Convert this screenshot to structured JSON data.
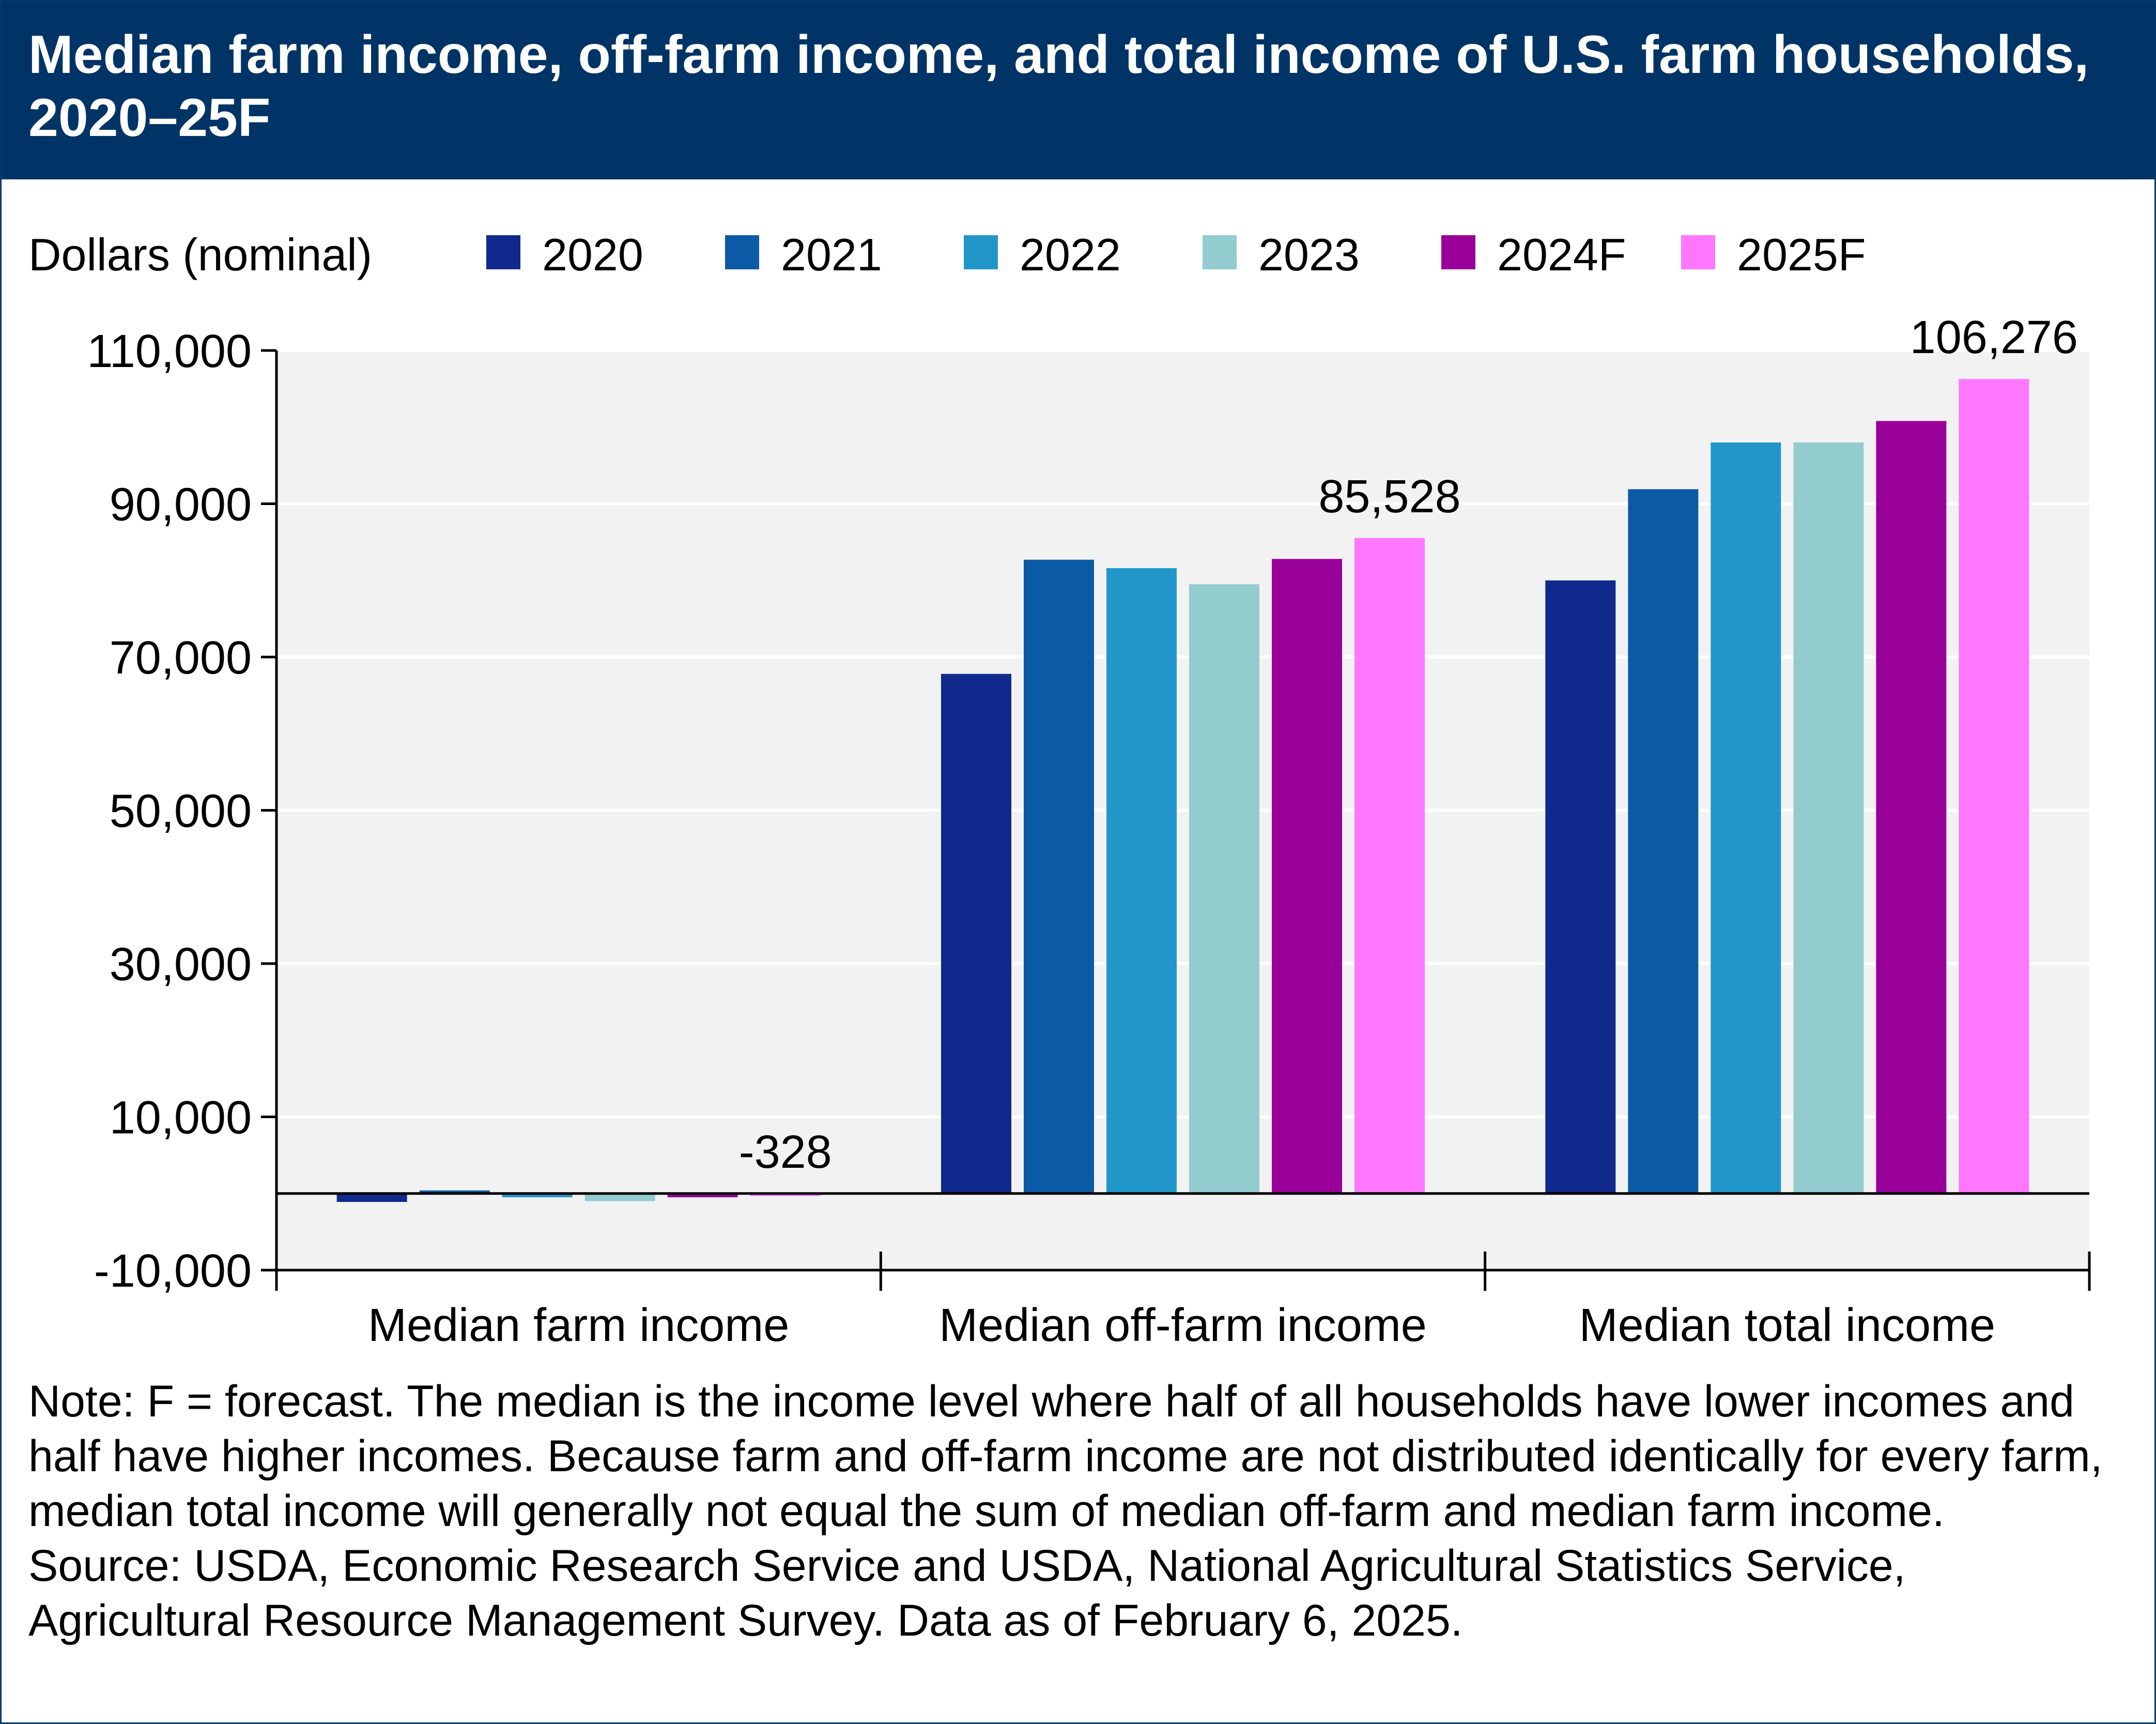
{
  "header": {
    "title": "Median farm income, off-farm income, and total income of U.S. farm households, 2020–25F"
  },
  "chart_data": {
    "type": "bar",
    "title": "Median farm income, off-farm income, and total income of U.S. farm households, 2020–25F",
    "ylabel": "Dollars (nominal)",
    "xlabel": "",
    "categories": [
      "Median farm income",
      "Median off-farm income",
      "Median total income"
    ],
    "ylim": [
      -10000,
      110000
    ],
    "yticks": [
      -10000,
      10000,
      30000,
      50000,
      70000,
      90000,
      110000
    ],
    "ytick_labels": [
      "-10,000",
      "10,000",
      "30,000",
      "50,000",
      "70,000",
      "90,000",
      "110,000"
    ],
    "grid": true,
    "legend_position": "top",
    "series": [
      {
        "name": "2020",
        "color": "#0f2a8c",
        "values": [
          -1100,
          67800,
          80000
        ]
      },
      {
        "name": "2021",
        "color": "#0b5aa6",
        "values": [
          400,
          82700,
          91900
        ]
      },
      {
        "name": "2022",
        "color": "#2097c8",
        "values": [
          -500,
          81600,
          98000
        ]
      },
      {
        "name": "2023",
        "color": "#92cccf",
        "values": [
          -1000,
          79500,
          98000
        ]
      },
      {
        "name": "2024F",
        "color": "#990099",
        "values": [
          -500,
          82800,
          100800
        ]
      },
      {
        "name": "2025F",
        "color": "#ff77ff",
        "values": [
          -328,
          85528,
          106276
        ]
      }
    ],
    "data_labels": [
      {
        "category": 0,
        "series": 5,
        "text": "-328"
      },
      {
        "category": 1,
        "series": 5,
        "text": "85,528"
      },
      {
        "category": 2,
        "series": 5,
        "text": "106,276"
      }
    ],
    "colors": {
      "plot_background": "#f2f2f2",
      "gridline": "#ffffff",
      "axis": "#000000"
    }
  },
  "footer": {
    "note": "Note: F = forecast. The median is the income level where half of all households have lower incomes and half have higher incomes. Because farm and off-farm income are not distributed identically for every farm, median total income will generally not equal the sum of median off-farm and median farm income.",
    "source": "Source: USDA, Economic Research Service and USDA, National Agricultural Statistics Service, Agricultural Resource Management Survey. Data as of February 6, 2025."
  }
}
